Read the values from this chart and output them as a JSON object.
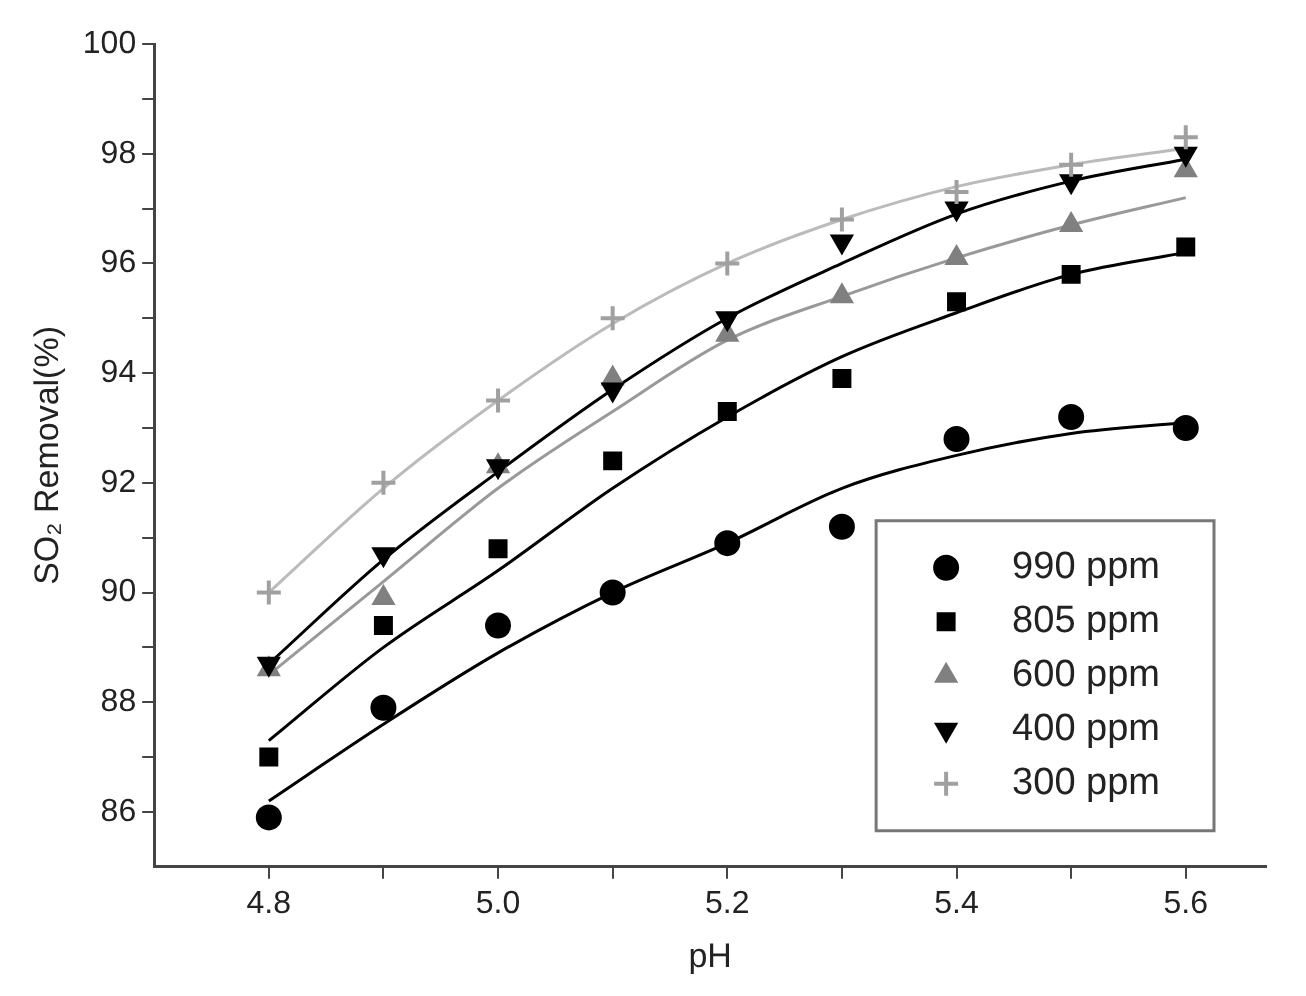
{
  "chart_data": {
    "type": "scatter",
    "xlabel": "pH",
    "ylabel": "SO₂ Removal(%)",
    "x": [
      4.8,
      4.9,
      5.0,
      5.1,
      5.2,
      5.3,
      5.4,
      5.5,
      5.6
    ],
    "xlim": [
      4.7,
      5.67
    ],
    "ylim": [
      85,
      100
    ],
    "xticks": [
      4.8,
      {
        "value": 4.9,
        "label": null
      },
      "5.0",
      {
        "value": 5.1,
        "label": null
      },
      5.2,
      {
        "value": 5.3,
        "label": null
      },
      5.4,
      {
        "value": 5.5,
        "label": null
      },
      5.6
    ],
    "yticks": [
      86,
      {
        "value": 87,
        "label": null
      },
      88,
      {
        "value": 89,
        "label": null
      },
      90,
      {
        "value": 91,
        "label": null
      },
      92,
      {
        "value": 93,
        "label": null
      },
      94,
      {
        "value": 95,
        "label": null
      },
      96,
      {
        "value": 97,
        "label": null
      },
      98,
      {
        "value": 99,
        "label": null
      },
      100
    ],
    "grid": false,
    "legend": "bottom right",
    "series": [
      {
        "name": "990 ppm",
        "color": "#000000",
        "marker": "circle",
        "values": [
          85.9,
          87.9,
          89.4,
          90.0,
          90.9,
          91.2,
          92.8,
          93.2,
          93.0
        ]
      },
      {
        "name": "805 ppm",
        "color": "#000000",
        "marker": "square",
        "values": [
          87.0,
          89.4,
          90.8,
          92.4,
          93.3,
          93.9,
          95.3,
          95.8,
          96.3
        ]
      },
      {
        "name": "600 ppm",
        "color": "#808080",
        "marker": "triangle",
        "values": [
          88.6,
          89.9,
          92.3,
          93.9,
          94.7,
          95.4,
          96.1,
          96.7,
          97.7
        ]
      },
      {
        "name": "400 ppm",
        "color": "#000000",
        "marker": "triangle-down",
        "values": [
          88.7,
          90.7,
          92.3,
          93.7,
          95.0,
          96.4,
          97.0,
          97.5,
          98.0
        ]
      },
      {
        "name": "300 ppm",
        "color": "#a0a0a0",
        "marker": "cross",
        "values": [
          90.0,
          92.0,
          93.5,
          95.0,
          96.0,
          96.8,
          97.3,
          97.8,
          98.3
        ]
      },
      {
        "type": "line",
        "color": "#000000",
        "marker": "none",
        "values": [
          86.2,
          87.6,
          88.9,
          90.0,
          90.9,
          91.9,
          92.5,
          92.9,
          93.1
        ]
      },
      {
        "type": "line",
        "color": "#000000",
        "marker": "none",
        "values": [
          87.3,
          89.0,
          90.4,
          91.9,
          93.2,
          94.3,
          95.1,
          95.8,
          96.2
        ]
      },
      {
        "type": "line",
        "color": "#999999",
        "marker": "none",
        "values": [
          88.5,
          90.2,
          91.9,
          93.3,
          94.6,
          95.4,
          96.1,
          96.7,
          97.2
        ]
      },
      {
        "type": "line",
        "color": "#000000",
        "marker": "none",
        "values": [
          88.7,
          90.6,
          92.2,
          93.7,
          95.0,
          96.0,
          96.9,
          97.5,
          97.9
        ]
      },
      {
        "type": "line",
        "color": "#bbbbbb",
        "marker": "none",
        "values": [
          90.0,
          91.9,
          93.5,
          94.9,
          96.0,
          96.8,
          97.4,
          97.8,
          98.1
        ]
      }
    ]
  }
}
